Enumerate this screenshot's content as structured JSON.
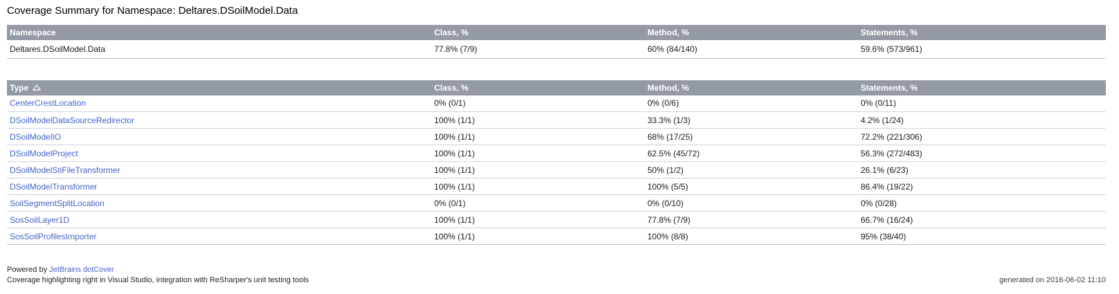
{
  "page": {
    "title": "Coverage Summary for Namespace: Deltares.DSoilModel.Data",
    "generated_on": "generated on 2016-06-02 11:10"
  },
  "colors": {
    "header_background": "#949aa4",
    "header_text": "#ffffff",
    "link": "#4462c4",
    "row_border": "#ccd2d8"
  },
  "icons": {
    "sort_ascending": "ascending-triangle"
  },
  "namespace_table": {
    "columns": [
      "Namespace",
      "Class, %",
      "Method, %",
      "Statements, %"
    ],
    "rows": [
      {
        "name": "Deltares.DSoilModel.Data",
        "class_pct": "77.8% (7/9)",
        "method_pct": "60% (84/140)",
        "statements_pct": "59.6% (573/961)"
      }
    ]
  },
  "type_table": {
    "columns": [
      "Type",
      "Class, %",
      "Method, %",
      "Statements, %"
    ],
    "sorted_by": "Type",
    "sort_direction": "ascending",
    "rows": [
      {
        "type": "CenterCrestLocation",
        "class_pct": "0% (0/1)",
        "method_pct": "0% (0/6)",
        "statements_pct": "0% (0/11)"
      },
      {
        "type": "DSoilModelDataSourceRedirector",
        "class_pct": "100% (1/1)",
        "method_pct": "33.3% (1/3)",
        "statements_pct": "4.2% (1/24)"
      },
      {
        "type": "DSoilModelIO",
        "class_pct": "100% (1/1)",
        "method_pct": "68% (17/25)",
        "statements_pct": "72.2% (221/306)"
      },
      {
        "type": "DSoilModelProject",
        "class_pct": "100% (1/1)",
        "method_pct": "62.5% (45/72)",
        "statements_pct": "56.3% (272/483)"
      },
      {
        "type": "DSoilModelStiFileTransformer",
        "class_pct": "100% (1/1)",
        "method_pct": "50% (1/2)",
        "statements_pct": "26.1% (6/23)"
      },
      {
        "type": "DSoilModelTransformer",
        "class_pct": "100% (1/1)",
        "method_pct": "100% (5/5)",
        "statements_pct": "86.4% (19/22)"
      },
      {
        "type": "SoilSegmentSplitLocation",
        "class_pct": "0% (0/1)",
        "method_pct": "0% (0/10)",
        "statements_pct": "0% (0/28)"
      },
      {
        "type": "SosSoilLayer1D",
        "class_pct": "100% (1/1)",
        "method_pct": "77.8% (7/9)",
        "statements_pct": "66.7% (16/24)"
      },
      {
        "type": "SosSoilProfilesImporter",
        "class_pct": "100% (1/1)",
        "method_pct": "100% (8/8)",
        "statements_pct": "95% (38/40)"
      }
    ]
  },
  "footer": {
    "powered_prefix": "Powered by ",
    "powered_link": "JetBrains dotCover",
    "tagline": "Coverage highlighting right in Visual Studio, integration with ReSharper's unit testing tools"
  }
}
